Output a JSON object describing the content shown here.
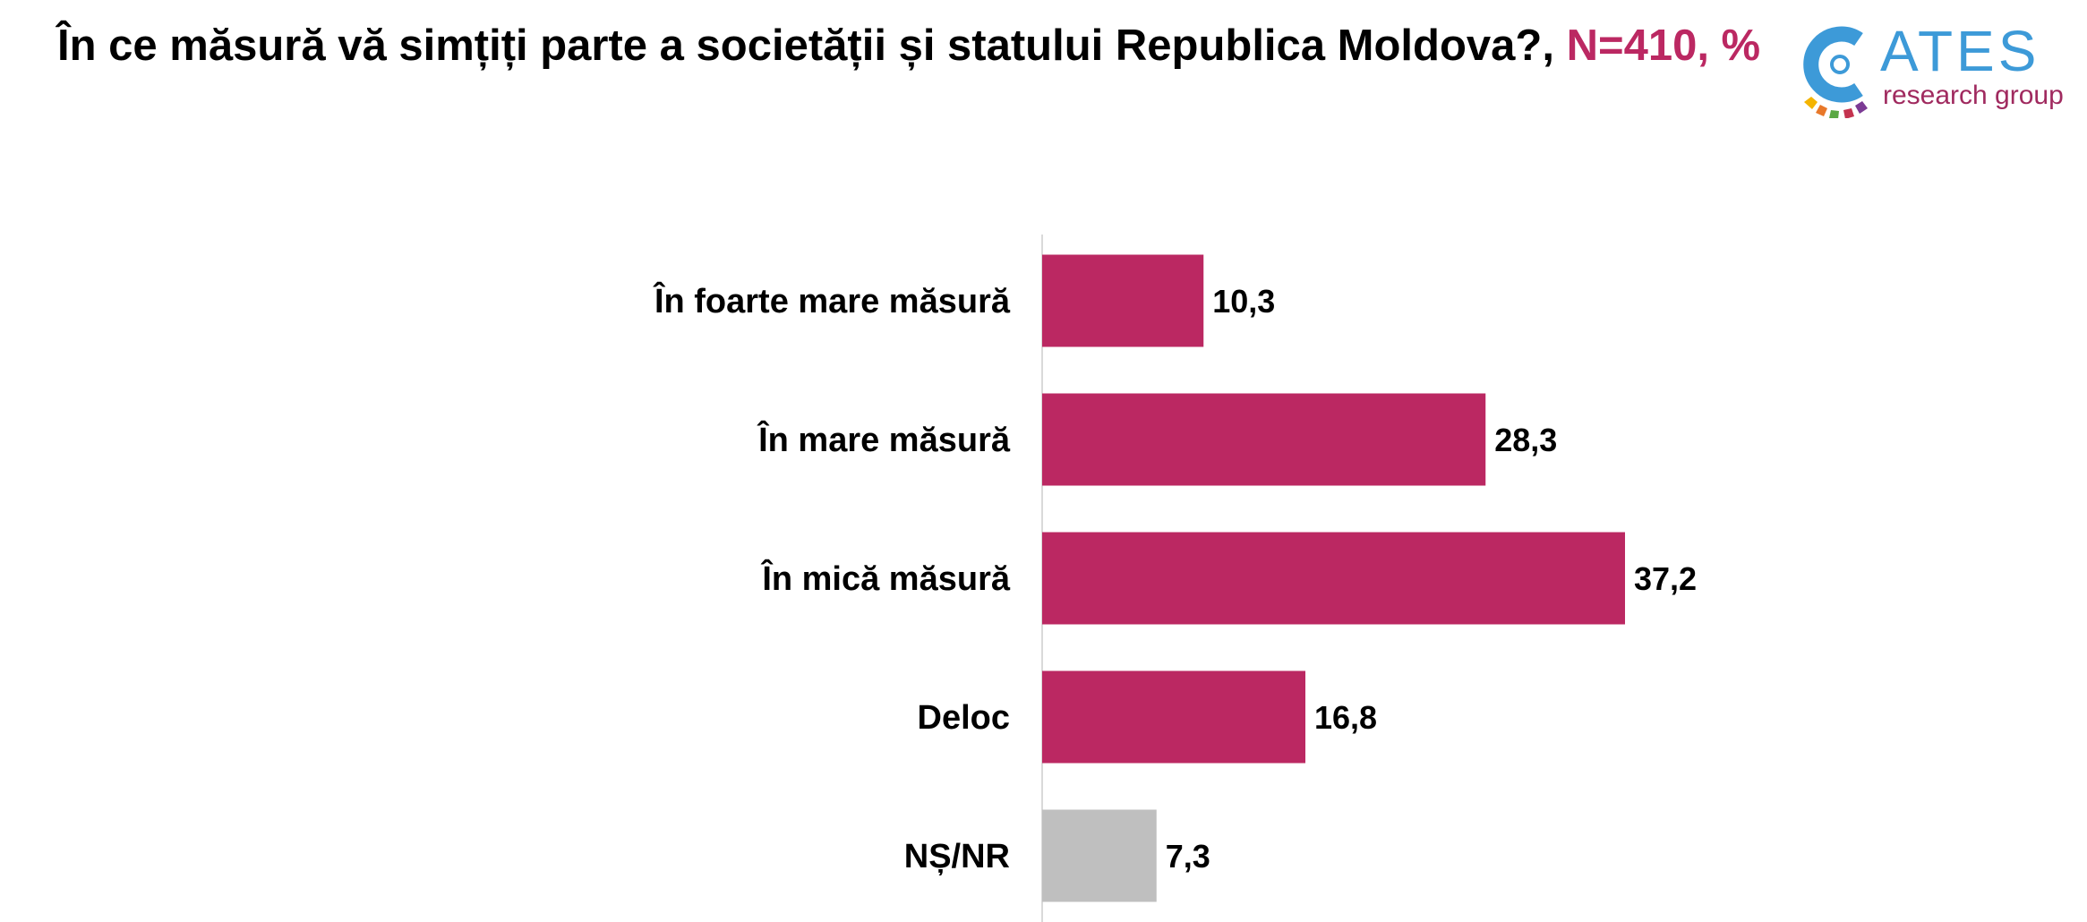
{
  "header": {
    "question": "În ce măsură vă simțiți parte a societății și statului Republica Moldova?,",
    "sample": "N=410, %"
  },
  "logo": {
    "name": "ATES",
    "subtitle": "research group"
  },
  "colors": {
    "accent": "#bb2862",
    "bar_main": "#bb2862",
    "bar_dk": "#bfbfbf",
    "axis": "#d9d9d9",
    "logo_blue": "#3d9ad8",
    "logo_sub": "#a02a5f"
  },
  "chart_data": {
    "type": "bar",
    "orientation": "horizontal",
    "title": "În ce măsură vă simțiți parte a societății și statului Republica Moldova?, N=410, %",
    "categories": [
      "În foarte mare măsură",
      "În mare măsură",
      "În mică măsură",
      "Deloc",
      "NȘ/NR"
    ],
    "values": [
      10.3,
      28.3,
      37.2,
      16.8,
      7.3
    ],
    "value_labels": [
      "10,3",
      "28,3",
      "37,2",
      "16,8",
      "7,3"
    ],
    "bar_colors": [
      "#bb2862",
      "#bb2862",
      "#bb2862",
      "#bb2862",
      "#bfbfbf"
    ],
    "xlabel": "",
    "ylabel": "",
    "xlim": [
      0,
      100
    ],
    "grid": false,
    "legend": "none"
  }
}
